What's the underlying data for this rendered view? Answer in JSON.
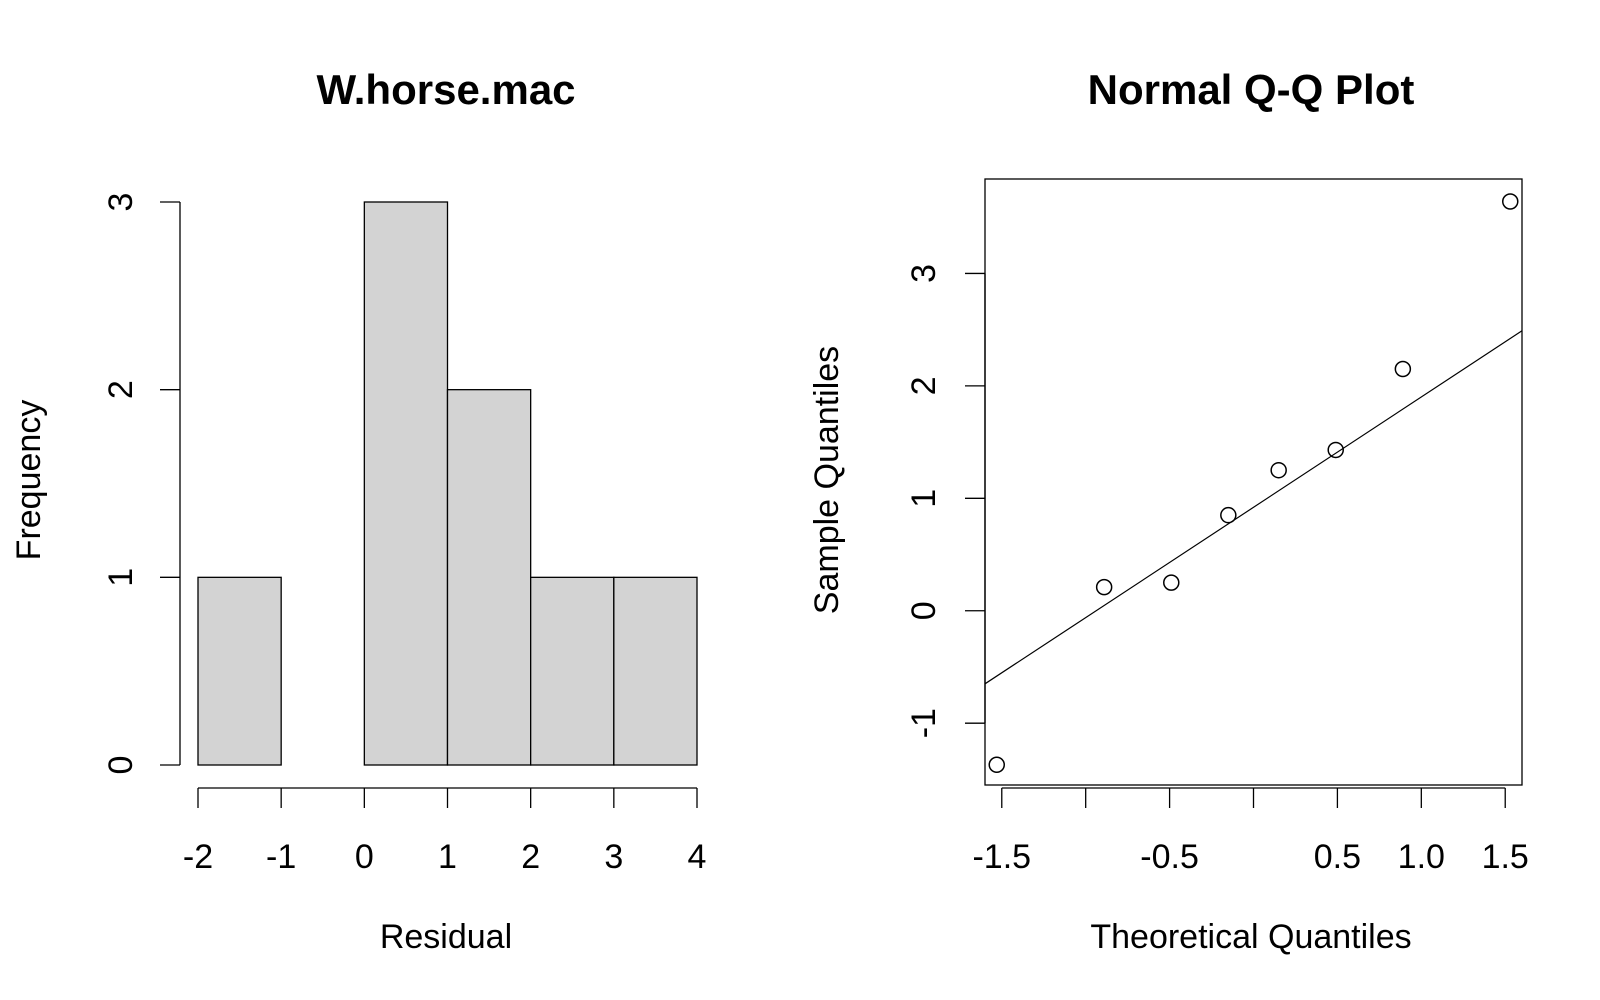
{
  "chart_data": [
    {
      "type": "bar",
      "title": "W.horse.mac",
      "xlabel": "Residual",
      "ylabel": "Frequency",
      "bin_edges": [
        -2,
        -1,
        0,
        1,
        2,
        3,
        4
      ],
      "values": [
        1,
        0,
        3,
        2,
        1,
        1
      ],
      "xlim": [
        -2,
        4
      ],
      "ylim": [
        0,
        3
      ],
      "x_ticks": [
        -2,
        -1,
        0,
        1,
        2,
        3,
        4
      ],
      "x_tick_labels": [
        "-2",
        "-1",
        "0",
        "1",
        "2",
        "3",
        "4"
      ],
      "y_ticks": [
        0,
        1,
        2,
        3
      ],
      "y_tick_labels": [
        "0",
        "1",
        "2",
        "3"
      ],
      "bar_color": "#d3d3d3",
      "grid": false
    },
    {
      "type": "scatter",
      "title": "Normal Q-Q Plot",
      "xlabel": "Theoretical Quantiles",
      "ylabel": "Sample Quantiles",
      "points": [
        {
          "x": -1.53,
          "y": -1.37
        },
        {
          "x": -0.89,
          "y": 0.21
        },
        {
          "x": -0.49,
          "y": 0.25
        },
        {
          "x": -0.15,
          "y": 0.85
        },
        {
          "x": 0.15,
          "y": 1.25
        },
        {
          "x": 0.49,
          "y": 1.43
        },
        {
          "x": 0.89,
          "y": 2.15
        },
        {
          "x": 1.53,
          "y": 3.64
        }
      ],
      "reference_line": {
        "x": [
          -1.6,
          1.6
        ],
        "y": [
          -0.65,
          2.49
        ]
      },
      "xlim": [
        -1.6,
        1.6
      ],
      "ylim": [
        -1.55,
        3.84
      ],
      "x_ticks": [
        -1.5,
        -1.0,
        -0.5,
        0.0,
        0.5,
        1.0,
        1.5
      ],
      "x_tick_labels": [
        "-1.5",
        "",
        "-0.5",
        "",
        "0.5",
        "1.0",
        "1.5"
      ],
      "y_ticks": [
        -1,
        0,
        1,
        2,
        3
      ],
      "y_tick_labels": [
        "-1",
        "0",
        "1",
        "2",
        "3"
      ],
      "grid": false
    }
  ]
}
